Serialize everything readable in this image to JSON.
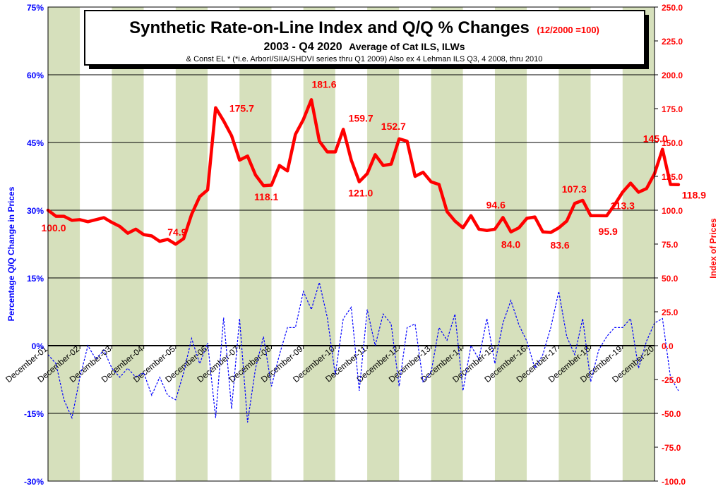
{
  "chart_data": {
    "type": "line",
    "title": "Synthetic Rate-on-Line Index and Q/Q % Changes",
    "title_note": "(12/2000 =100)",
    "subtitle_bold": "2003 - Q4 2020",
    "subtitle_normal": "Average of Cat ILS, ILWs",
    "subtitle2": "& Const EL * (*i.e. ArborI/SIIA/SHDVI series thru Q1 2009)  Also ex 4 Lehman ILS Q3, 4 2008, thru 2010",
    "ylabel_left": "Percentage Q/Q Change in Prices",
    "ylabel_right": "Index of Prices",
    "ylim_left": [
      -0.3,
      0.75
    ],
    "ylim_right": [
      -100,
      250
    ],
    "left_ticks": [
      "-30%",
      "-15%",
      "0%",
      "15%",
      "30%",
      "45%",
      "60%",
      "75%"
    ],
    "right_ticks": [
      "-100.0",
      "-75.0",
      "-50.0",
      "-25.0",
      "0.0",
      "25.0",
      "50.0",
      "75.0",
      "100.0",
      "125.0",
      "150.0",
      "175.0",
      "200.0",
      "225.0",
      "250.0"
    ],
    "x_tick_labels": [
      "December-01",
      "December-02",
      "December-03",
      "December-04",
      "December-05",
      "December-06",
      "December-07",
      "December-08",
      "December-09",
      "December-10",
      "December-11",
      "December-12",
      "December-13",
      "December-14",
      "December-15",
      "December-16",
      "December-17",
      "December-18",
      "December-19",
      "December-20"
    ],
    "quarters_per_year": 4,
    "grid": "vertical bands",
    "colors": {
      "index": "#ff0000",
      "change": "#0000ff",
      "band_light": "#d6e0bc",
      "band_white": "#ffffff",
      "left_axis_text": "#0000ff",
      "right_axis_text": "#ff0000"
    },
    "series": [
      {
        "key": "index",
        "axis": "right",
        "values": [
          100.0,
          95.5,
          95.5,
          92.5,
          93.0,
          91.5,
          93.0,
          94.5,
          91.0,
          88.0,
          83.0,
          86.0,
          82.0,
          81.0,
          77.0,
          78.5,
          74.9,
          79.0,
          97.0,
          110.0,
          115.0,
          175.7,
          166.0,
          155.0,
          137.0,
          140.0,
          126.0,
          118.1,
          118.5,
          133.0,
          129.0,
          156.0,
          167.0,
          181.6,
          151.0,
          143.0,
          143.0,
          159.7,
          137.0,
          121.0,
          127.0,
          141.0,
          133.0,
          134.0,
          152.7,
          151.0,
          125.0,
          128.0,
          121.0,
          119.0,
          99.0,
          92.0,
          87.0,
          96.0,
          86.0,
          85.0,
          86.0,
          94.6,
          84.0,
          87.0,
          94.0,
          95.0,
          84.0,
          83.6,
          87.0,
          92.0,
          105.0,
          107.3,
          96.0,
          96.0,
          95.9,
          104.0,
          113.3,
          120.0,
          113.3,
          116.0,
          127.0,
          145.0,
          119.0,
          118.9
        ]
      },
      {
        "key": "change",
        "axis": "left",
        "values": [
          -0.02,
          -0.04,
          -0.12,
          -0.16,
          -0.07,
          0.0,
          -0.03,
          -0.01,
          -0.05,
          -0.07,
          -0.05,
          -0.07,
          -0.06,
          -0.11,
          -0.07,
          -0.11,
          -0.12,
          -0.06,
          0.016,
          -0.04,
          0.006,
          -0.16,
          0.062,
          -0.14,
          0.06,
          -0.17,
          -0.05,
          0.02,
          -0.09,
          -0.02,
          0.04,
          0.04,
          0.12,
          0.08,
          0.14,
          0.062,
          -0.065,
          0.06,
          0.085,
          -0.1,
          0.08,
          0.0,
          0.07,
          0.048,
          -0.09,
          0.04,
          0.048,
          -0.08,
          -0.06,
          0.04,
          0.012,
          0.07,
          -0.1,
          0.0,
          -0.03,
          0.06,
          -0.04,
          0.05,
          0.1,
          0.046,
          0.01,
          -0.05,
          -0.02,
          0.04,
          0.12,
          0.02,
          -0.02,
          0.06,
          -0.08,
          -0.01,
          0.02,
          0.04,
          0.04,
          0.06,
          -0.05,
          0.01,
          0.05,
          0.06,
          -0.07,
          -0.1
        ]
      }
    ],
    "annotations": [
      {
        "text": "100.0",
        "index": 0
      },
      {
        "text": "74.9",
        "index": 16
      },
      {
        "text": "175.7",
        "index": 21
      },
      {
        "text": "118.1",
        "index": 27
      },
      {
        "text": "181.6",
        "index": 33
      },
      {
        "text": "159.7",
        "index": 37
      },
      {
        "text": "121.0",
        "index": 39
      },
      {
        "text": "152.7",
        "index": 44
      },
      {
        "text": "84.0",
        "index": 58
      },
      {
        "text": "94.6",
        "index": 57
      },
      {
        "text": "83.6",
        "index": 63
      },
      {
        "text": "107.3",
        "index": 67
      },
      {
        "text": "95.9",
        "index": 70
      },
      {
        "text": "113.3",
        "index": 72
      },
      {
        "text": "145.0",
        "index": 77
      },
      {
        "text": "118.9",
        "index": 79
      }
    ]
  }
}
